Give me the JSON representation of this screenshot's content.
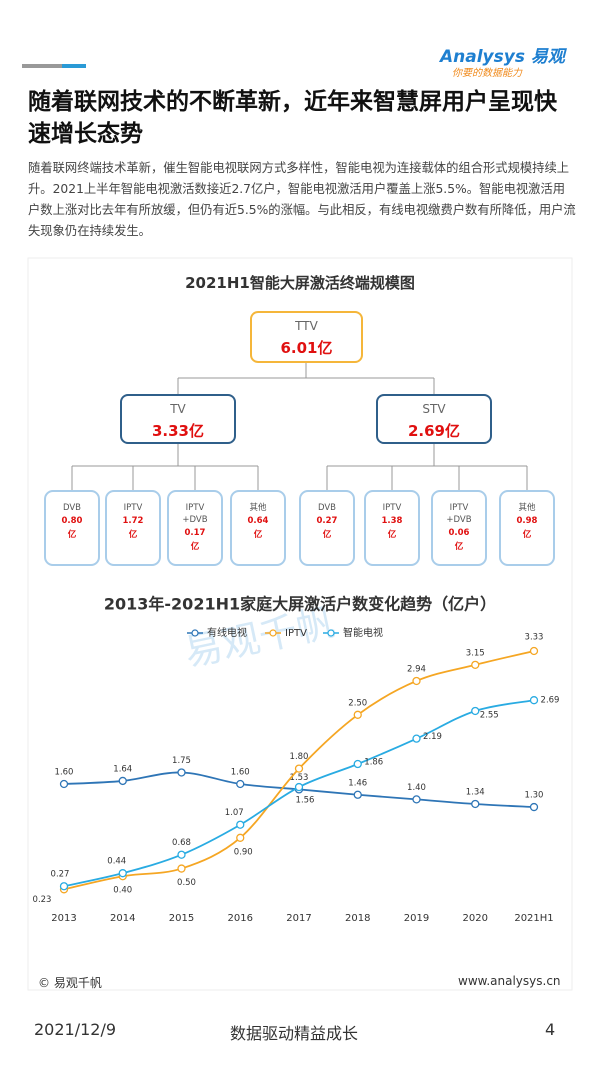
{
  "header": {
    "logo": "Analysys 易观",
    "tagline": "你要的数据能力"
  },
  "title": "随着联网技术的不断革新，近年来智慧屏用户呈现快速增长态势",
  "paragraph": "随着联网终端技术革新，催生智能电视联网方式多样性，智能电视为连接载体的组合形式规模持续上升。2021上半年智能电视激活数接近2.7亿户，智能电视激活用户覆盖上涨5.5%。智能电视激活用户数上涨对比去年有所放缓，但仍有近5.5%的涨幅。与此相反，有线电视缴费户数有所降低，用户流失现象仍在持续发生。",
  "diagram": {
    "title": "2021H1智能大屏激活终端规模图",
    "root": {
      "label": "TTV",
      "value": "6.01亿"
    },
    "branches": [
      {
        "label": "TV",
        "value": "3.33亿",
        "leaves": [
          {
            "label": "DVB",
            "value": "0.80",
            "unit": "亿"
          },
          {
            "label": "IPTV",
            "value": "1.72",
            "unit": "亿"
          },
          {
            "label": "IPTV\n+DVB",
            "value": "0.17",
            "unit": "亿"
          },
          {
            "label": "其他",
            "value": "0.64",
            "unit": "亿"
          }
        ]
      },
      {
        "label": "STV",
        "value": "2.69亿",
        "leaves": [
          {
            "label": "DVB",
            "value": "0.27",
            "unit": "亿"
          },
          {
            "label": "IPTV",
            "value": "1.38",
            "unit": "亿"
          },
          {
            "label": "IPTV\n+DVB",
            "value": "0.06",
            "unit": "亿"
          },
          {
            "label": "其他",
            "value": "0.98",
            "unit": "亿"
          }
        ]
      }
    ]
  },
  "chart_data": {
    "type": "line",
    "title": "2013年-2021H1家庭大屏激活户数变化趋势（亿户）",
    "categories": [
      "2013",
      "2014",
      "2015",
      "2016",
      "2017",
      "2018",
      "2019",
      "2020",
      "2021H1"
    ],
    "series": [
      {
        "name": "有线电视",
        "color": "#2e75b6",
        "values": [
          1.6,
          1.64,
          1.75,
          1.6,
          1.53,
          1.46,
          1.4,
          1.34,
          1.3
        ],
        "value_labels": [
          "1.60",
          "1.64",
          "1.75",
          "1.60",
          "1.53",
          "1.46",
          "1.40",
          "1.34",
          "1.30"
        ]
      },
      {
        "name": "IPTV",
        "color": "#f5a623",
        "values": [
          0.23,
          0.4,
          0.5,
          0.9,
          1.8,
          2.5,
          2.94,
          3.15,
          3.33
        ],
        "value_labels": [
          "0.23",
          "0.40",
          "0.50",
          "0.90",
          "1.80",
          "2.50",
          "2.94",
          "3.15",
          "3.33"
        ]
      },
      {
        "name": "智能电视",
        "color": "#29abe2",
        "values": [
          0.27,
          0.44,
          0.68,
          1.07,
          1.56,
          1.86,
          2.19,
          2.55,
          2.69
        ],
        "value_labels": [
          "0.27",
          "0.44",
          "0.68",
          "1.07",
          "1.56",
          "1.86",
          "2.19",
          "2.55",
          "2.69"
        ]
      }
    ],
    "watermark": "易观千帆"
  },
  "footer": {
    "source": "© 易观千帆",
    "site": "www.analysys.cn",
    "date": "2021/12/9",
    "slogan": "数据驱动精益成长",
    "page": "4"
  }
}
